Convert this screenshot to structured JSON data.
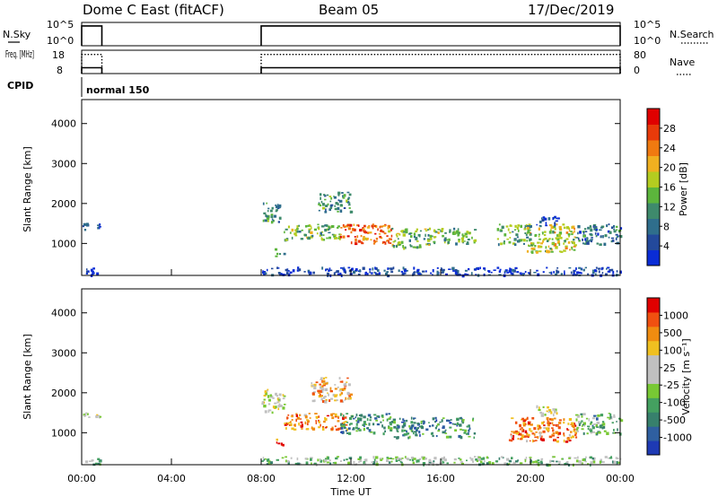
{
  "header": {
    "title": "Dome C East (fitACF)",
    "beam": "Beam 05",
    "date": "17/Dec/2019"
  },
  "chart_data": [
    {
      "type": "line",
      "panel": "sky-noise",
      "ylabel": "N.Sky",
      "y2label": "N.Search",
      "yticks": [
        "10^5",
        "10^0"
      ],
      "y2ticks": [
        "10^5",
        "10^0"
      ],
      "xlim": [
        0,
        24
      ],
      "segments": [
        {
          "x_start": 0.0,
          "x_end": 0.9,
          "level": 0.85
        },
        {
          "x_start": 8.0,
          "x_end": 24.0,
          "level": 0.85
        }
      ]
    },
    {
      "type": "line",
      "panel": "frequency",
      "ylabel": "Freq. [MHz]",
      "y2label": "Nave",
      "yticks": [
        "18",
        "8"
      ],
      "y2ticks": [
        "80",
        "0"
      ],
      "ylim": [
        8,
        18
      ],
      "freq_segments": [
        {
          "x_start": 0.0,
          "x_end": 0.9,
          "value": 10.5
        },
        {
          "x_start": 8.0,
          "x_end": 24.0,
          "value": 10.5
        }
      ],
      "nave_segments": [
        {
          "x_start": 0.0,
          "x_end": 0.9,
          "value": 0.82
        },
        {
          "x_start": 8.0,
          "x_end": 24.0,
          "value": 0.82
        }
      ]
    },
    {
      "type": "table",
      "panel": "cpid",
      "label": "CPID",
      "entries": [
        {
          "x": 0.0,
          "text": "normal 150"
        }
      ]
    },
    {
      "type": "heatmap",
      "panel": "power",
      "ylabel": "Slant Range [km]",
      "xlim": [
        0,
        24
      ],
      "ylim": [
        200,
        4600
      ],
      "yticks": [
        1000,
        2000,
        3000,
        4000
      ],
      "colorbar": {
        "label": "Power [dB]",
        "ticks": [
          "4",
          "8",
          "12",
          "16",
          "20",
          "24",
          "28"
        ],
        "colors": [
          "#0a2cd6",
          "#23499b",
          "#2f6e8c",
          "#3e8a6c",
          "#5cb53c",
          "#b4cc20",
          "#f0b020",
          "#f07a10",
          "#e83a0a",
          "#e00000"
        ]
      },
      "scatter_regions": [
        {
          "x0": 0.0,
          "x1": 0.3,
          "y0": 1350,
          "y1": 1550,
          "level": 0.1
        },
        {
          "x0": 0.6,
          "x1": 0.8,
          "y0": 1400,
          "y1": 1520,
          "level": 0.1
        },
        {
          "x0": 0.0,
          "x1": 0.8,
          "y0": 220,
          "y1": 400,
          "level": 0.05
        },
        {
          "x0": 8.0,
          "x1": 8.8,
          "y0": 1550,
          "y1": 2100,
          "level": 0.35
        },
        {
          "x0": 8.6,
          "x1": 9.0,
          "y0": 700,
          "y1": 900,
          "level": 0.3
        },
        {
          "x0": 9.0,
          "x1": 11.5,
          "y0": 1100,
          "y1": 1500,
          "level": 0.45
        },
        {
          "x0": 10.5,
          "x1": 12.0,
          "y0": 1800,
          "y1": 2300,
          "level": 0.35
        },
        {
          "x0": 11.5,
          "x1": 13.8,
          "y0": 1000,
          "y1": 1500,
          "level": 0.75
        },
        {
          "x0": 13.8,
          "x1": 15.5,
          "y0": 900,
          "y1": 1400,
          "level": 0.45
        },
        {
          "x0": 15.5,
          "x1": 17.5,
          "y0": 1000,
          "y1": 1400,
          "level": 0.45
        },
        {
          "x0": 18.5,
          "x1": 20.0,
          "y0": 1000,
          "y1": 1500,
          "level": 0.4
        },
        {
          "x0": 19.8,
          "x1": 22.0,
          "y0": 800,
          "y1": 1500,
          "level": 0.55
        },
        {
          "x0": 20.2,
          "x1": 21.2,
          "y0": 1450,
          "y1": 1700,
          "level": 0.15
        },
        {
          "x0": 22.0,
          "x1": 24.0,
          "y0": 1000,
          "y1": 1500,
          "level": 0.25
        },
        {
          "x0": 8.0,
          "x1": 24.0,
          "y0": 220,
          "y1": 420,
          "level": 0.1
        }
      ]
    },
    {
      "type": "heatmap",
      "panel": "velocity",
      "ylabel": "Slant Range [km]",
      "xlabel": "Time UT",
      "xlim": [
        0,
        24
      ],
      "xticks": [
        "00:00",
        "04:00",
        "08:00",
        "12:00",
        "16:00",
        "20:00",
        "00:00"
      ],
      "ylim": [
        200,
        4600
      ],
      "yticks": [
        1000,
        2000,
        3000,
        4000
      ],
      "colorbar": {
        "label": "Velocity [m s⁻¹]",
        "ticks": [
          "1000",
          "500",
          "100",
          "25",
          "-25",
          "-100",
          "-500",
          "-1000"
        ],
        "colors": [
          "#1e3ab4",
          "#2f5fa0",
          "#37806c",
          "#44a060",
          "#78c834",
          "#c0c0c0",
          "#c0c0c0",
          "#f0c020",
          "#f08c10",
          "#f05010",
          "#e00000"
        ]
      },
      "scatter_regions": [
        {
          "x0": 0.0,
          "x1": 0.3,
          "y0": 1350,
          "y1": 1550,
          "level": 0.55
        },
        {
          "x0": 0.6,
          "x1": 0.8,
          "y0": 1400,
          "y1": 1520,
          "level": 0.55
        },
        {
          "x0": 0.0,
          "x1": 0.8,
          "y0": 220,
          "y1": 400,
          "level": 0.4
        },
        {
          "x0": 8.0,
          "x1": 9.0,
          "y0": 1500,
          "y1": 2100,
          "level": 0.55
        },
        {
          "x0": 8.6,
          "x1": 9.0,
          "y0": 700,
          "y1": 900,
          "level": 0.8
        },
        {
          "x0": 9.0,
          "x1": 11.8,
          "y0": 1100,
          "y1": 1500,
          "level": 0.8
        },
        {
          "x0": 10.2,
          "x1": 12.0,
          "y0": 1800,
          "y1": 2400,
          "level": 0.7
        },
        {
          "x0": 11.5,
          "x1": 13.8,
          "y0": 1000,
          "y1": 1500,
          "level": 0.25
        },
        {
          "x0": 13.8,
          "x1": 17.5,
          "y0": 900,
          "y1": 1400,
          "level": 0.25
        },
        {
          "x0": 19.0,
          "x1": 22.0,
          "y0": 800,
          "y1": 1400,
          "level": 0.8
        },
        {
          "x0": 20.2,
          "x1": 21.2,
          "y0": 1450,
          "y1": 1700,
          "level": 0.55
        },
        {
          "x0": 22.0,
          "x1": 24.0,
          "y0": 1000,
          "y1": 1500,
          "level": 0.35
        },
        {
          "x0": 8.0,
          "x1": 24.0,
          "y0": 220,
          "y1": 420,
          "level": 0.4
        }
      ]
    }
  ]
}
